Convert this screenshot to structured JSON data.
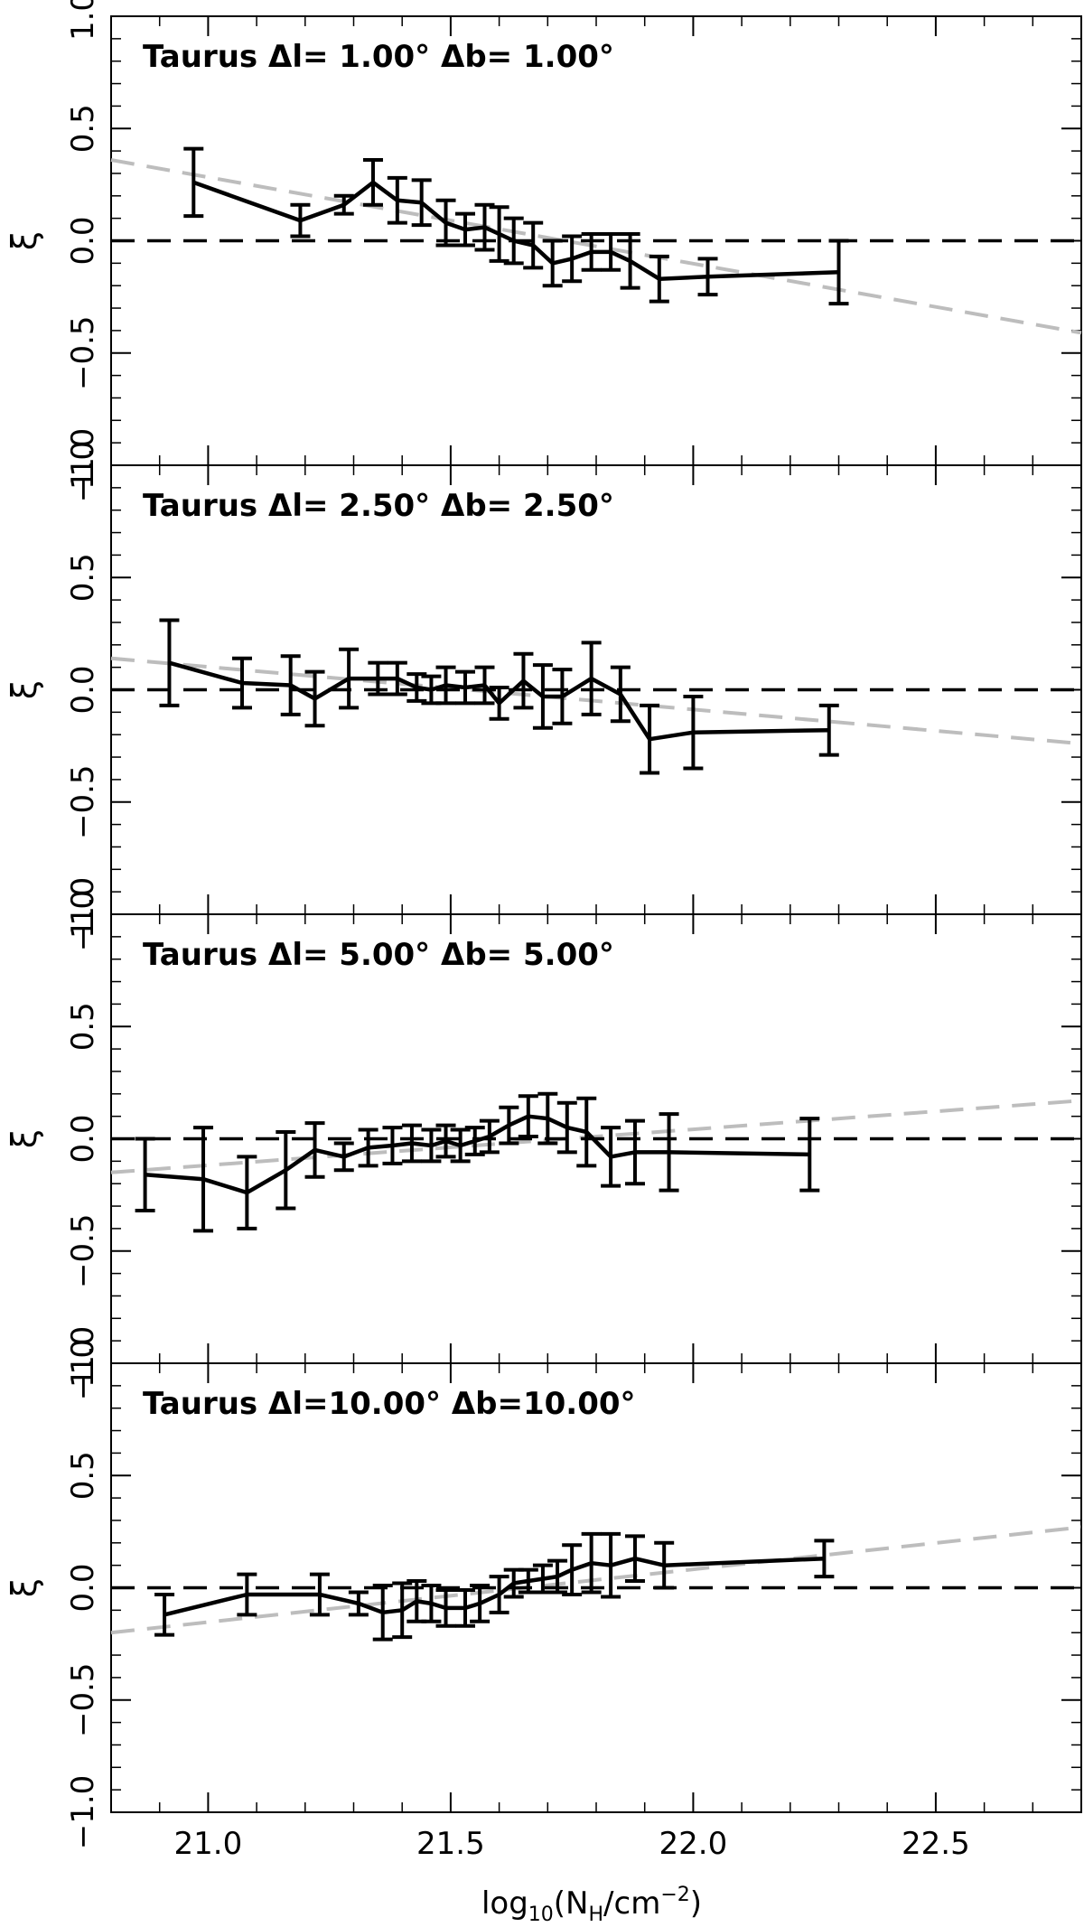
{
  "figure": {
    "xlabel_main": "log",
    "xlabel_sub": "10",
    "xlabel_open": "(N",
    "xlabel_nsub": "H",
    "xlabel_mid": "/cm",
    "xlabel_sup": "−2",
    "xlabel_close": ")",
    "ylabel": "ξ"
  },
  "chart_data": [
    {
      "type": "line",
      "title": "Taurus Δl= 1.00° Δb= 1.00°",
      "xlim": [
        20.8,
        22.8
      ],
      "ylim": [
        -1.0,
        1.0
      ],
      "xticks": [
        "21.0",
        "21.5",
        "22.0",
        "22.5"
      ],
      "yticks": [
        "−1.0",
        "−0.5",
        "0.0",
        "0.5",
        "1.0"
      ],
      "series": [
        {
          "values_x": [
            20.97,
            21.19,
            21.28,
            21.34,
            21.39,
            21.44,
            21.49,
            21.53,
            21.57,
            21.6,
            21.63,
            21.67,
            21.71,
            21.75,
            21.79,
            21.83,
            21.87,
            21.93,
            22.03,
            22.3
          ],
          "values_y": [
            0.26,
            0.09,
            0.16,
            0.26,
            0.18,
            0.17,
            0.08,
            0.05,
            0.06,
            0.03,
            0.0,
            -0.02,
            -0.1,
            -0.08,
            -0.05,
            -0.05,
            -0.09,
            -0.17,
            -0.16,
            -0.14
          ],
          "err": [
            0.15,
            0.07,
            0.04,
            0.1,
            0.1,
            0.1,
            0.1,
            0.07,
            0.1,
            0.12,
            0.1,
            0.1,
            0.1,
            0.1,
            0.08,
            0.08,
            0.12,
            0.1,
            0.08,
            0.14
          ]
        }
      ],
      "fit": [
        [
          20.8,
          0.36
        ],
        [
          22.8,
          -0.41
        ]
      ],
      "zero_line": 0.0
    },
    {
      "type": "line",
      "title": "Taurus Δl= 2.50° Δb= 2.50°",
      "xlim": [
        20.8,
        22.8
      ],
      "ylim": [
        -1.0,
        1.0
      ],
      "xticks": [
        "21.0",
        "21.5",
        "22.0",
        "22.5"
      ],
      "yticks": [
        "−1.0",
        "−0.5",
        "0.0",
        "0.5",
        "1.0"
      ],
      "series": [
        {
          "values_x": [
            20.92,
            21.07,
            21.17,
            21.22,
            21.29,
            21.35,
            21.39,
            21.43,
            21.46,
            21.49,
            21.53,
            21.57,
            21.6,
            21.65,
            21.69,
            21.73,
            21.79,
            21.85,
            21.91,
            22.0,
            22.28
          ],
          "values_y": [
            0.12,
            0.03,
            0.02,
            -0.04,
            0.05,
            0.05,
            0.05,
            0.01,
            0.0,
            0.02,
            0.01,
            0.02,
            -0.06,
            0.04,
            -0.03,
            -0.03,
            0.05,
            -0.02,
            -0.22,
            -0.19,
            -0.18
          ],
          "err": [
            0.19,
            0.11,
            0.13,
            0.12,
            0.13,
            0.07,
            0.07,
            0.06,
            0.06,
            0.08,
            0.07,
            0.08,
            0.07,
            0.12,
            0.14,
            0.12,
            0.16,
            0.12,
            0.15,
            0.16,
            0.11
          ]
        }
      ],
      "fit": [
        [
          20.8,
          0.14
        ],
        [
          22.8,
          -0.24
        ]
      ],
      "zero_line": 0.0
    },
    {
      "type": "line",
      "title": "Taurus Δl= 5.00° Δb= 5.00°",
      "xlim": [
        20.8,
        22.8
      ],
      "ylim": [
        -1.0,
        1.0
      ],
      "xticks": [
        "21.0",
        "21.5",
        "22.0",
        "22.5"
      ],
      "yticks": [
        "−1.0",
        "−0.5",
        "0.0",
        "0.5",
        "1.0"
      ],
      "series": [
        {
          "values_x": [
            20.87,
            20.99,
            21.08,
            21.16,
            21.22,
            21.28,
            21.33,
            21.38,
            21.42,
            21.46,
            21.49,
            21.52,
            21.55,
            21.58,
            21.62,
            21.66,
            21.7,
            21.74,
            21.78,
            21.83,
            21.88,
            21.95,
            22.24
          ],
          "values_y": [
            -0.16,
            -0.18,
            -0.24,
            -0.14,
            -0.05,
            -0.08,
            -0.04,
            -0.03,
            -0.02,
            -0.03,
            -0.01,
            -0.03,
            -0.01,
            0.01,
            0.06,
            0.1,
            0.09,
            0.05,
            0.03,
            -0.08,
            -0.06,
            -0.06,
            -0.07
          ],
          "err": [
            0.16,
            0.23,
            0.16,
            0.17,
            0.12,
            0.06,
            0.08,
            0.08,
            0.08,
            0.07,
            0.07,
            0.07,
            0.06,
            0.07,
            0.08,
            0.09,
            0.11,
            0.11,
            0.15,
            0.13,
            0.14,
            0.17,
            0.16
          ]
        }
      ],
      "fit": [
        [
          20.8,
          -0.15
        ],
        [
          22.8,
          0.17
        ]
      ],
      "zero_line": 0.0
    },
    {
      "type": "line",
      "title": "Taurus Δl=10.00° Δb=10.00°",
      "xlim": [
        20.8,
        22.8
      ],
      "ylim": [
        -1.0,
        1.0
      ],
      "xticks": [
        "21.0",
        "21.5",
        "22.0",
        "22.5"
      ],
      "yticks": [
        "−1.0",
        "−0.5",
        "0.0",
        "0.5",
        "1.0"
      ],
      "series": [
        {
          "values_x": [
            20.91,
            21.08,
            21.23,
            21.31,
            21.36,
            21.4,
            21.43,
            21.46,
            21.49,
            21.53,
            21.56,
            21.6,
            21.63,
            21.66,
            21.69,
            21.72,
            21.75,
            21.79,
            21.83,
            21.88,
            21.94,
            22.27
          ],
          "values_y": [
            -0.12,
            -0.03,
            -0.03,
            -0.07,
            -0.11,
            -0.1,
            -0.06,
            -0.07,
            -0.09,
            -0.09,
            -0.07,
            -0.03,
            0.02,
            0.03,
            0.04,
            0.05,
            0.08,
            0.11,
            0.1,
            0.13,
            0.1,
            0.13
          ],
          "err": [
            0.09,
            0.09,
            0.09,
            0.05,
            0.12,
            0.12,
            0.09,
            0.08,
            0.08,
            0.08,
            0.08,
            0.08,
            0.06,
            0.05,
            0.06,
            0.07,
            0.11,
            0.13,
            0.14,
            0.1,
            0.1,
            0.08
          ]
        }
      ],
      "fit": [
        [
          20.8,
          -0.2
        ],
        [
          22.8,
          0.27
        ]
      ],
      "zero_line": 0.0
    }
  ]
}
